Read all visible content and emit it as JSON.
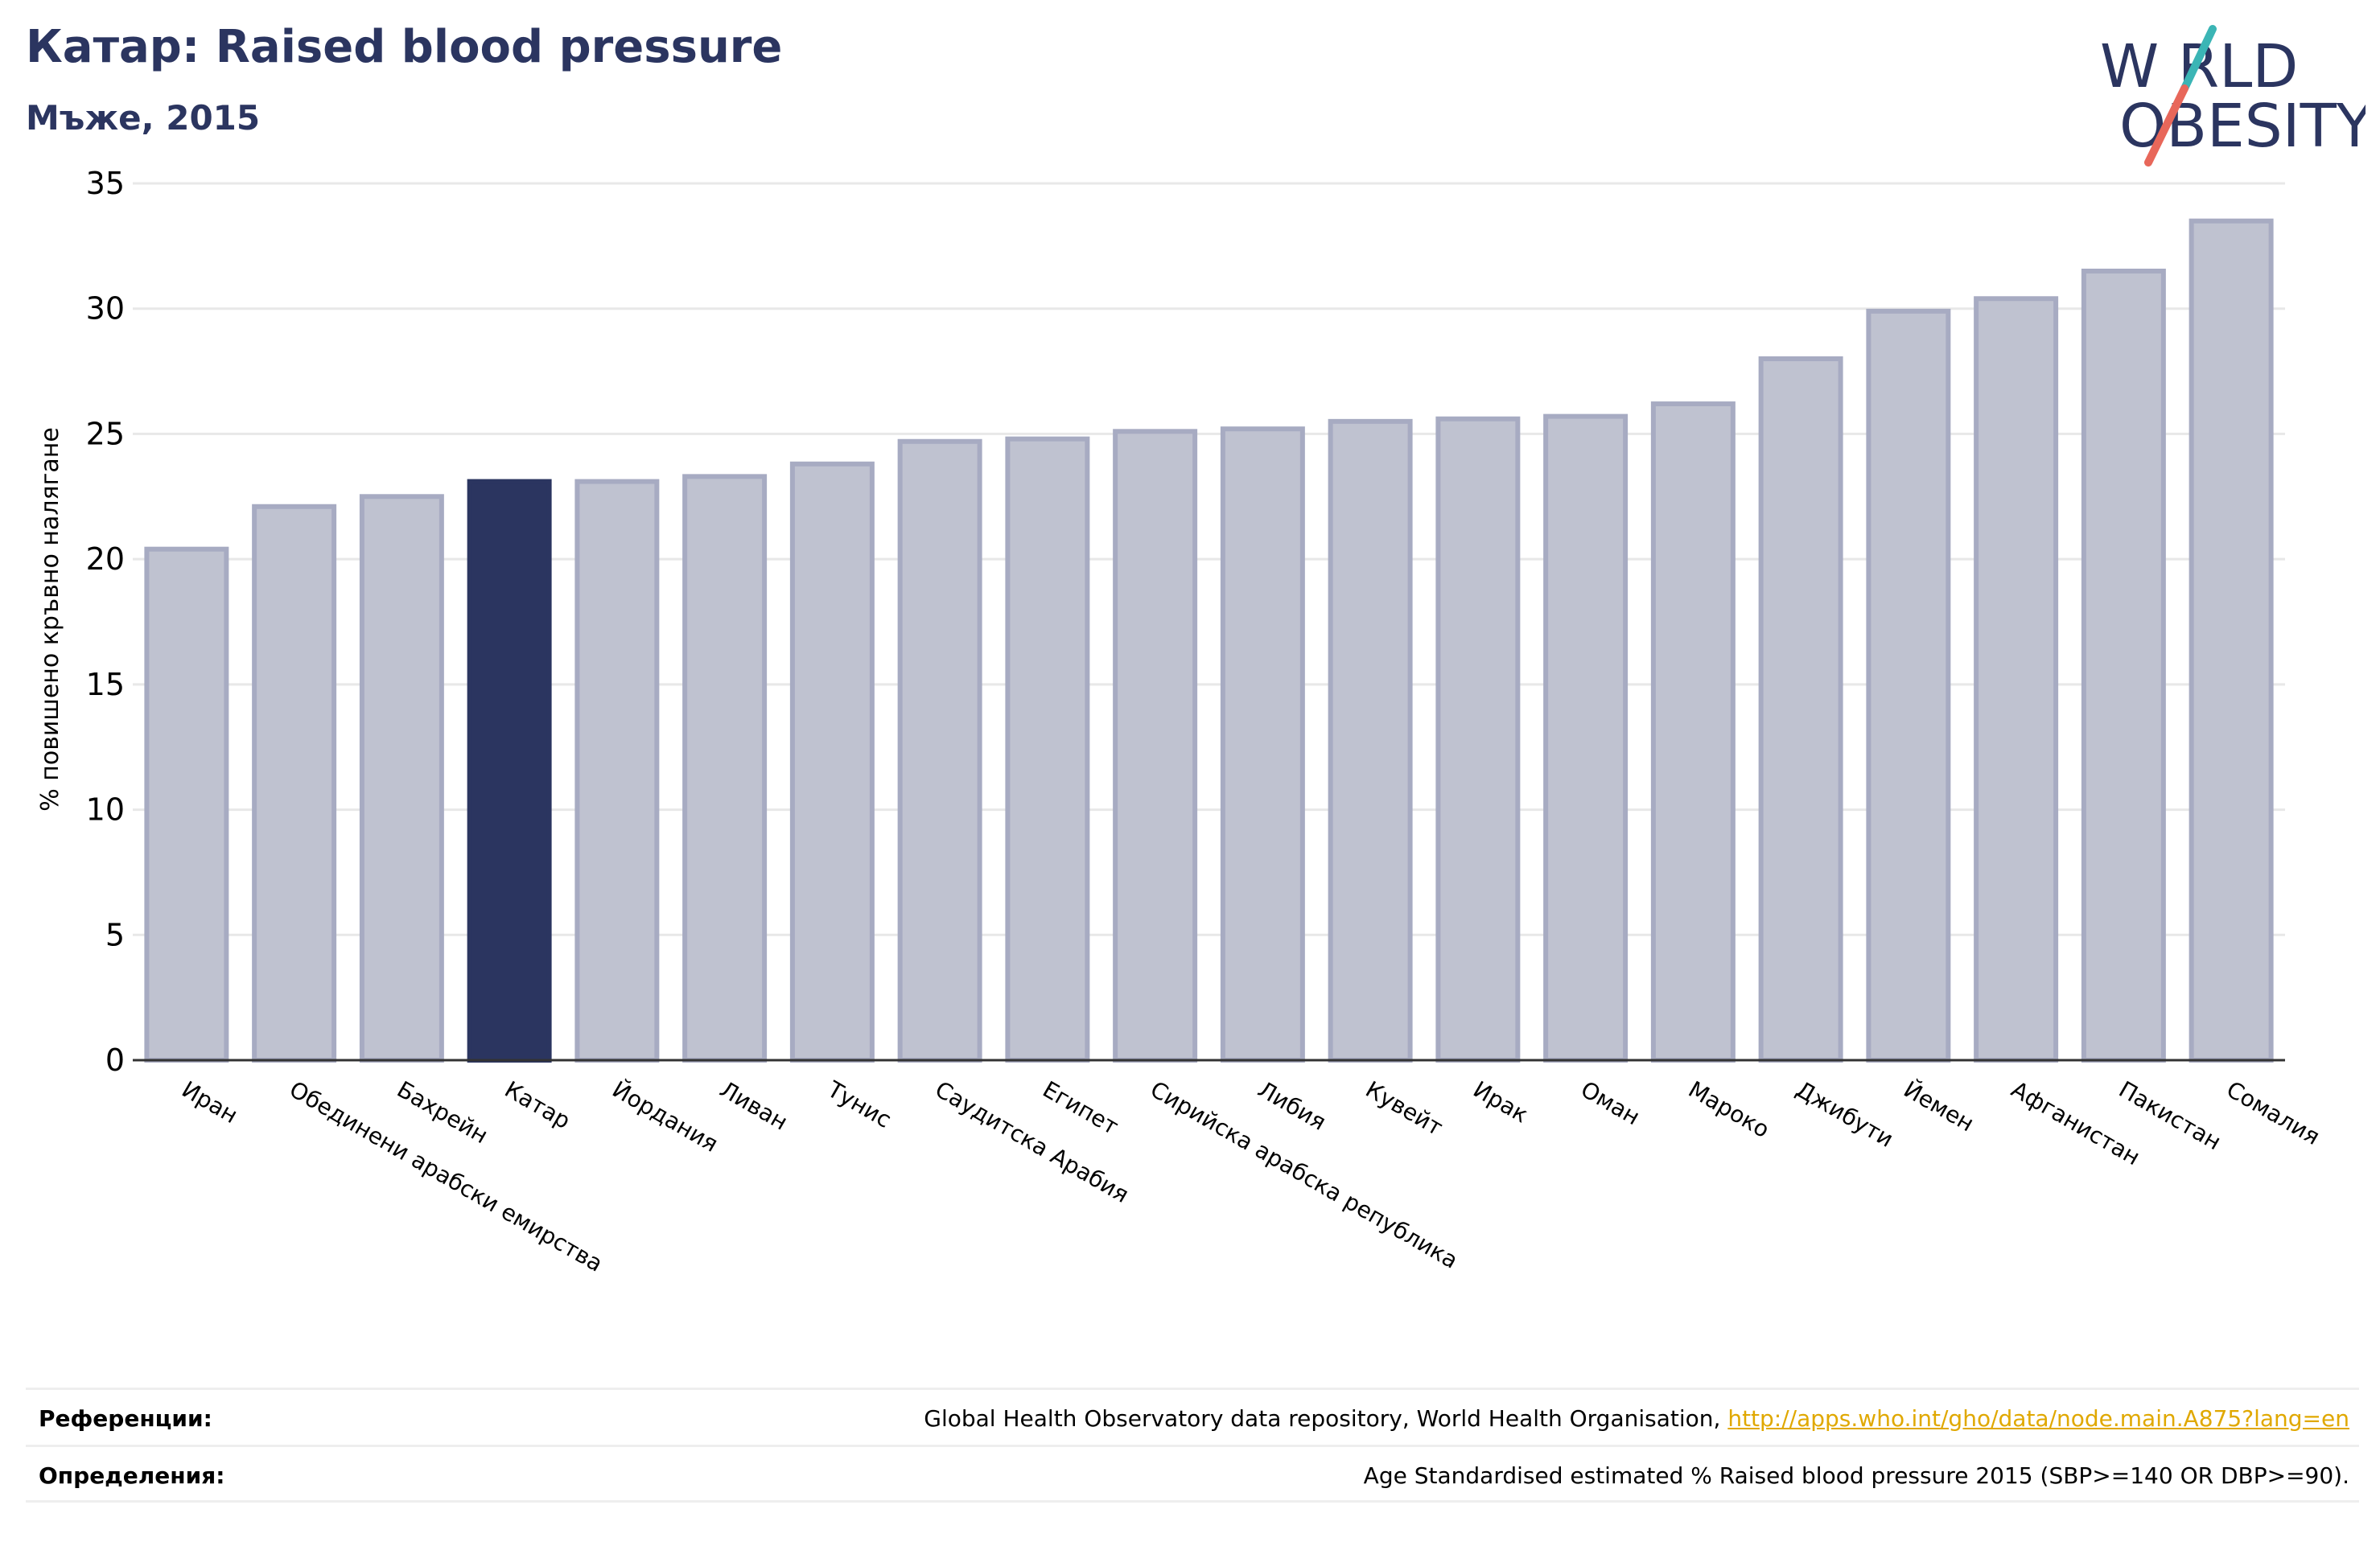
{
  "header": {
    "title": "Катар: Raised blood pressure",
    "subtitle": "Мъже, 2015"
  },
  "logo": {
    "line1": "W RLD",
    "line2": "OBESITY",
    "colors": {
      "text": "#2b3560",
      "slash_top": "#3bb5b5",
      "slash_bottom": "#e8675a"
    }
  },
  "chart_data": {
    "type": "bar",
    "ylabel": "% повишено кръвно налягане",
    "ylim": [
      0,
      35
    ],
    "yticks": [
      0,
      5,
      10,
      15,
      20,
      25,
      30,
      35
    ],
    "grid": true,
    "categories": [
      "Иран",
      "Обединени арабски емирства",
      "Бахрейн",
      "Катар",
      "Йордания",
      "Ливан",
      "Тунис",
      "Саудитска Арабия",
      "Египет",
      "Сирийска арабска република",
      "Либия",
      "Кувейт",
      "Ирак",
      "Оман",
      "Мароко",
      "Джибути",
      "Йемен",
      "Афганистан",
      "Пакистан",
      "Сомалия"
    ],
    "values": [
      20.4,
      22.1,
      22.5,
      23.1,
      23.1,
      23.3,
      23.8,
      24.7,
      24.8,
      25.1,
      25.2,
      25.5,
      25.6,
      25.7,
      26.2,
      28.0,
      29.9,
      30.4,
      31.5,
      33.5
    ],
    "highlight": "Катар",
    "colors": {
      "bar": "#bfc2d0",
      "bar_edge": "#a7abc2",
      "highlight": "#2b3560"
    }
  },
  "footer": {
    "references_label": "Референции:",
    "references_text": "Global Health Observatory data repository, World Health Organisation, ",
    "references_link": "http://apps.who.int/gho/data/node.main.A875?lang=en",
    "definitions_label": "Определения:",
    "definitions_text": "Age Standardised estimated % Raised blood pressure 2015 (SBP>=140 OR DBP>=90)."
  }
}
